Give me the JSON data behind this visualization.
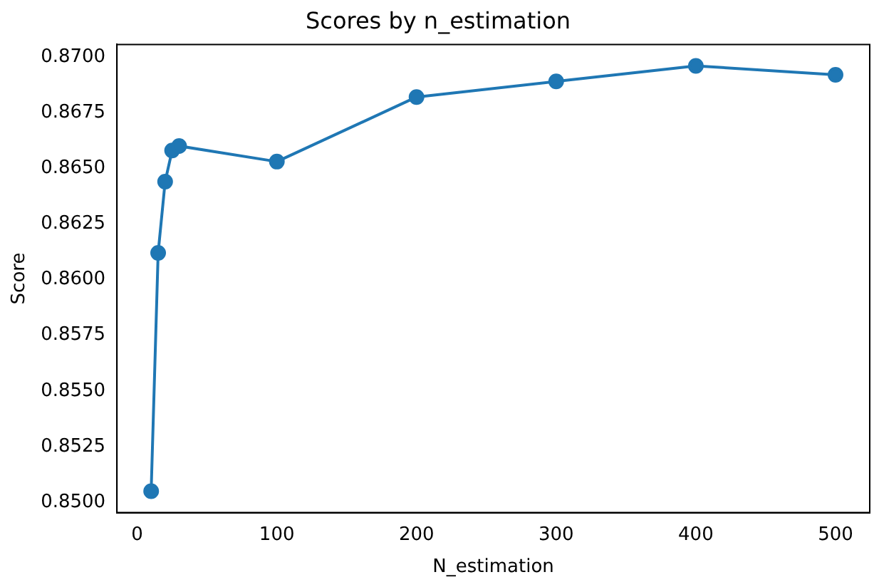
{
  "chart_data": {
    "type": "line",
    "title": "Scores by n_estimation",
    "xlabel": "N_estimation",
    "ylabel": "Score",
    "x": [
      10,
      15,
      20,
      25,
      30,
      100,
      200,
      300,
      400,
      500
    ],
    "series": [
      {
        "color": "#1f77b4",
        "values": [
          0.8505,
          0.8612,
          0.8644,
          0.8658,
          0.866,
          0.8653,
          0.8682,
          0.8689,
          0.8696,
          0.8692
        ]
      }
    ],
    "xlim": [
      -14.5,
      524.5
    ],
    "xticks": [
      0,
      100,
      200,
      300,
      400,
      500
    ],
    "ylim": [
      0.84954,
      0.87056
    ],
    "yticks": [
      {
        "value": 0.85,
        "label": "0.8500"
      },
      {
        "value": 0.8525,
        "label": "0.8525"
      },
      {
        "value": 0.855,
        "label": "0.8550"
      },
      {
        "value": 0.8575,
        "label": "0.8575"
      },
      {
        "value": 0.86,
        "label": "0.8600"
      },
      {
        "value": 0.8625,
        "label": "0.8625"
      },
      {
        "value": 0.865,
        "label": "0.8650"
      },
      {
        "value": 0.8675,
        "label": "0.8675"
      },
      {
        "value": 0.87,
        "label": "0.8700"
      }
    ],
    "marker": "circle",
    "grid": false,
    "legend": false
  }
}
